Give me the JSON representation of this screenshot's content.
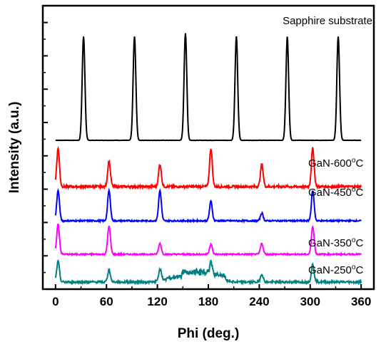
{
  "chart_data": {
    "type": "line",
    "xlabel": "Phi (deg.)",
    "ylabel": "Intensity (a.u.)",
    "xlim": [
      -15,
      375
    ],
    "xticks": [
      0,
      60,
      120,
      180,
      240,
      300,
      360
    ],
    "y_tick_labels_shown": false,
    "peak_width_deg": 1.6,
    "series": [
      {
        "name": "Sapphire substrate",
        "label_parts": [
          "Sapphire substrate"
        ],
        "color": "#000000",
        "baseline": 0.0,
        "noise": 0.004,
        "peaks": [
          [
            33,
            3.1
          ],
          [
            93,
            3.1
          ],
          [
            153,
            3.2
          ],
          [
            213,
            3.1
          ],
          [
            273,
            3.1
          ],
          [
            333,
            3.1
          ]
        ]
      },
      {
        "name": "GaN-600°C",
        "label_parts": [
          "GaN-600",
          "o",
          "C"
        ],
        "color": "#ff0000",
        "baseline": 0.0,
        "noise": 0.02,
        "peaks": [
          [
            3,
            0.63
          ],
          [
            63,
            0.42
          ],
          [
            123,
            0.37
          ],
          [
            183,
            0.63
          ],
          [
            243,
            0.37
          ],
          [
            303,
            0.63
          ]
        ]
      },
      {
        "name": "GaN-450°C",
        "label_parts": [
          "GaN-450",
          "o",
          "C"
        ],
        "color": "#0000ff",
        "baseline": 0.0,
        "noise": 0.02,
        "peaks": [
          [
            3,
            0.85
          ],
          [
            63,
            0.85
          ],
          [
            123,
            0.85
          ],
          [
            183,
            0.55
          ],
          [
            243,
            0.22
          ],
          [
            303,
            0.85
          ]
        ]
      },
      {
        "name": "GaN-350°C",
        "label_parts": [
          "GaN-350",
          "o",
          "C"
        ],
        "color": "#ff00ff",
        "baseline": 0.0,
        "noise": 0.02,
        "peaks": [
          [
            3,
            0.88
          ],
          [
            63,
            0.82
          ],
          [
            123,
            0.32
          ],
          [
            183,
            0.3
          ],
          [
            243,
            0.32
          ],
          [
            303,
            0.82
          ]
        ]
      },
      {
        "name": "GaN-250°C",
        "label_parts": [
          "GaN-250",
          "o",
          "C"
        ],
        "color": "#008080",
        "baseline": 0.0,
        "noise": 0.04,
        "peaks": [
          [
            3,
            0.72
          ],
          [
            63,
            0.42
          ],
          [
            123,
            0.38
          ],
          [
            183,
            0.35
          ],
          [
            243,
            0.28
          ],
          [
            303,
            0.62
          ]
        ],
        "bump": {
          "from": 115,
          "to": 210,
          "height": 0.45
        }
      }
    ]
  }
}
